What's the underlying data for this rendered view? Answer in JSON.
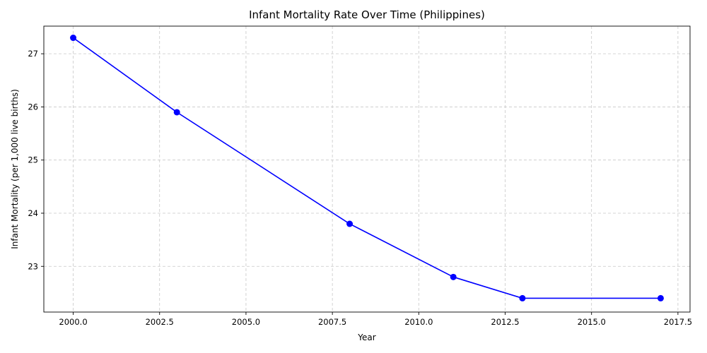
{
  "chart_data": {
    "type": "line",
    "title": "Infant Mortality Rate Over Time (Philippines)",
    "xlabel": "Year",
    "ylabel": "Infant Mortality (per 1,000 live births)",
    "xlim": [
      1999.15,
      2017.85
    ],
    "ylim": [
      22.14,
      27.52
    ],
    "x_ticks": [
      2000,
      2002.5,
      2005,
      2007.5,
      2010,
      2012.5,
      2015,
      2017.5
    ],
    "x_tick_labels": [
      "2000.0",
      "2002.5",
      "2005.0",
      "2007.5",
      "2010.0",
      "2012.5",
      "2015.0",
      "2017.5"
    ],
    "y_ticks": [
      23,
      24,
      25,
      26,
      27
    ],
    "y_tick_labels": [
      "23",
      "24",
      "25",
      "26",
      "27"
    ],
    "grid": true,
    "series": [
      {
        "color": "#0000ff",
        "marker": "circle",
        "x": [
          2000,
          2003,
          2008,
          2011,
          2013,
          2017
        ],
        "y": [
          27.3,
          25.9,
          23.8,
          22.8,
          22.4,
          22.4
        ]
      }
    ]
  }
}
